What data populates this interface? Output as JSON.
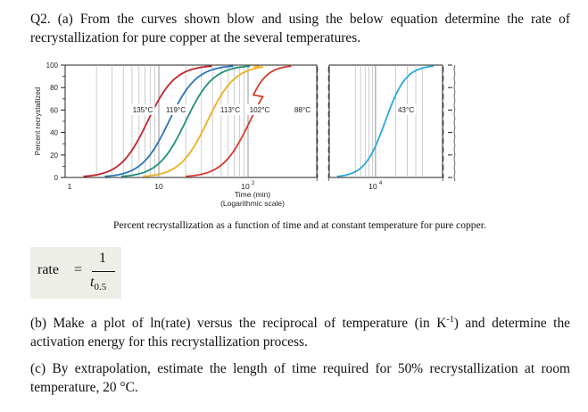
{
  "question_a": "Q2. (a) From the curves shown blow and using the below equation determine the rate of recrystallization for pure copper at the several temperatures.",
  "figure_caption": "Percent recrystallization as a function of time and at constant temperature for pure copper.",
  "equation": {
    "lhs": "rate",
    "equals": "=",
    "numerator": "1",
    "denominator_var": "t",
    "denominator_sub": "0.5"
  },
  "question_b_parts": [
    "(b) Make a plot of ln(rate) versus the reciprocal of temperature (in K",
    "-1",
    ") and determine the activation energy for this recrystallization process."
  ],
  "question_c": "(c) By extrapolation, estimate the length of time required for 50% recrystallization at room temperature, 20 °C.",
  "chart_data": {
    "type": "line",
    "ylabel": "Percent recrystallized",
    "xlabel": "Time (min)",
    "xlabel_note": "(Logarithmic scale)",
    "x_scale": "log",
    "xlim": [
      1,
      20000
    ],
    "ylim": [
      0,
      100
    ],
    "y_ticks": [
      "0",
      "20",
      "40",
      "60",
      "80",
      "100"
    ],
    "x_ticks": [
      {
        "value": 1,
        "label": "1"
      },
      {
        "value": 10,
        "label": "10"
      },
      {
        "value": 100,
        "label": "10",
        "sup": "2"
      },
      {
        "value": 10000,
        "label": "10",
        "sup": "4"
      }
    ],
    "axis_breaks_after": [
      150,
      8000
    ],
    "series": [
      {
        "name": "135°C",
        "color": "#c0242c",
        "t50": 7.5
      },
      {
        "name": "119°C",
        "color": "#2a74b8",
        "t50": 13
      },
      {
        "name": "113°C",
        "color": "#1f8f7a",
        "t50": 20
      },
      {
        "name": "102°C",
        "color": "#ecb021",
        "t50": 35
      },
      {
        "name": "88°C",
        "color": "#d43b2e",
        "t50": 105
      },
      {
        "name": "43°C",
        "color": "#2aa9d6",
        "t50": 14000
      }
    ],
    "grid": "vertical"
  }
}
